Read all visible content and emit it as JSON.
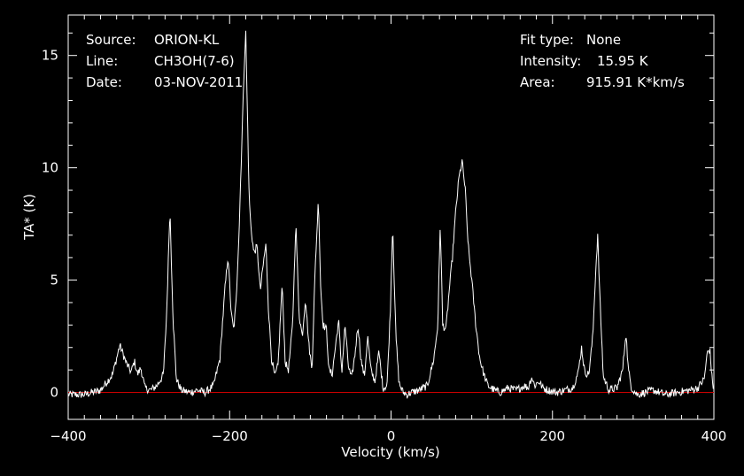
{
  "header": {
    "left": [
      {
        "key": "Source:",
        "value": "ORION-KL"
      },
      {
        "key": "Line:",
        "value": "CH3OH(7-6)"
      },
      {
        "key": "Date:",
        "value": "03-NOV-2011"
      }
    ],
    "right": [
      {
        "key": "Fit type:",
        "value": "None"
      },
      {
        "key": "Intensity:",
        "value": "15.95 K"
      },
      {
        "key": "Area:",
        "value": "915.91 K*km/s"
      }
    ]
  },
  "chart_data": {
    "type": "line",
    "xlabel": "Velocity (km/s)",
    "ylabel": "TA* (K)",
    "xlim": [
      -400,
      400
    ],
    "ylim": [
      -1.2,
      16.8
    ],
    "xticks": [
      -400,
      -200,
      0,
      200,
      400
    ],
    "xtick_labels": [
      "−400",
      "−200",
      "0",
      "200",
      "400"
    ],
    "yticks": [
      0,
      5,
      10,
      15
    ],
    "ytick_labels": [
      "0",
      "5",
      "10",
      "15"
    ],
    "grid": false,
    "colors": {
      "background": "#000000",
      "axes": "#ffffff",
      "spectrum": "#ffffff",
      "baseline": "#cc0000"
    },
    "baseline": 0,
    "series": [
      {
        "x": [
          -400,
          -380,
          -360,
          -345,
          -336,
          -328,
          -322,
          -318,
          -314,
          -310,
          -305,
          -298,
          -290,
          -282,
          -278,
          -274,
          -270,
          -266,
          -260,
          -250,
          -240,
          -230,
          -220,
          -212,
          -206,
          -202,
          -198,
          -195,
          -192,
          -188,
          -185,
          -182,
          -180,
          -178,
          -176,
          -174,
          -170,
          -166,
          -162,
          -158,
          -155,
          -152,
          -148,
          -144,
          -140,
          -135,
          -131,
          -127,
          -122,
          -118,
          -114,
          -110,
          -106,
          -102,
          -98,
          -94,
          -90,
          -87,
          -84,
          -80,
          -77,
          -73,
          -69,
          -65,
          -61,
          -57,
          -53,
          -49,
          -45,
          -41,
          -37,
          -33,
          -29,
          -25,
          -20,
          -15,
          -10,
          -5,
          -1,
          2,
          6,
          10,
          15,
          20,
          25,
          35,
          45,
          53,
          58,
          61,
          64,
          68,
          72,
          76,
          80,
          84,
          88,
          92,
          94,
          96,
          100,
          105,
          110,
          115,
          120,
          128,
          135,
          145,
          155,
          165,
          170,
          174,
          178,
          183,
          188,
          195,
          205,
          215,
          225,
          232,
          236,
          240,
          245,
          250,
          253,
          256,
          259,
          263,
          270,
          280,
          287,
          291,
          294,
          298,
          305,
          315,
          325,
          340,
          355,
          370,
          380,
          388,
          392,
          395,
          398,
          400
        ],
        "y": [
          -0.1,
          -0.1,
          0.1,
          0.8,
          2.1,
          1.3,
          0.9,
          1.4,
          0.8,
          1.1,
          0.2,
          0.1,
          0.3,
          0.8,
          3.5,
          8.2,
          3.2,
          0.6,
          0.1,
          0.0,
          0.1,
          0.0,
          0.3,
          1.5,
          4.5,
          6.1,
          3.5,
          2.8,
          4.0,
          7.5,
          11.0,
          14.5,
          16.0,
          12.5,
          9.0,
          7.5,
          6.2,
          6.5,
          4.5,
          5.8,
          6.6,
          3.8,
          1.5,
          0.7,
          1.2,
          4.8,
          1.3,
          1.0,
          3.0,
          7.6,
          3.5,
          2.5,
          4.2,
          2.2,
          1.0,
          5.5,
          8.6,
          4.5,
          3.0,
          2.8,
          1.0,
          0.8,
          2.0,
          3.2,
          0.9,
          3.0,
          1.2,
          0.6,
          1.6,
          3.0,
          1.4,
          0.7,
          2.5,
          1.0,
          0.5,
          1.8,
          0.2,
          0.3,
          3.5,
          7.5,
          2.5,
          0.4,
          0.0,
          -0.1,
          0.0,
          0.1,
          0.3,
          1.5,
          3.0,
          7.6,
          3.0,
          2.8,
          4.5,
          6.0,
          8.0,
          9.5,
          10.3,
          9.0,
          7.5,
          6.4,
          5.0,
          3.0,
          1.5,
          0.8,
          0.3,
          0.1,
          0.0,
          0.2,
          0.1,
          0.3,
          0.2,
          0.7,
          0.3,
          0.5,
          0.2,
          0.1,
          0.0,
          0.1,
          0.2,
          0.9,
          2.0,
          0.9,
          0.8,
          2.5,
          5.0,
          7.0,
          4.0,
          0.7,
          0.1,
          0.2,
          1.0,
          2.7,
          1.0,
          0.2,
          -0.1,
          0.0,
          0.1,
          -0.1,
          0.0,
          0.1,
          0.2,
          0.6,
          1.8,
          1.9,
          0.5,
          0.1
        ]
      }
    ]
  }
}
